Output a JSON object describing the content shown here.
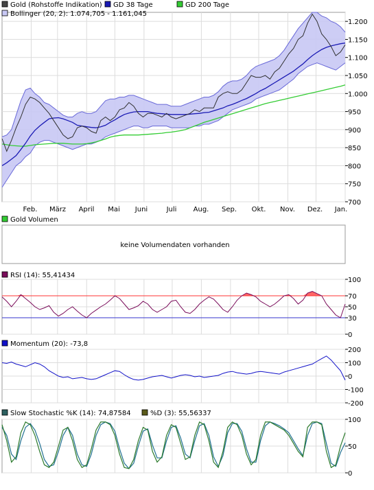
{
  "colors": {
    "price_line": "#303030",
    "bollinger_fill": "#c8c8f4",
    "bollinger_stroke": "#6868d8",
    "ma38": "#1a1ab4",
    "ma200": "#33cc33",
    "rsi_line": "#7a0c5a",
    "rsi_hi_fill": "#ff6666",
    "rsi_lo_fill": "#5a4ae8",
    "rsi_hi_ref": "#ff3333",
    "rsi_lo_ref": "#3333cc",
    "momentum": "#1010c8",
    "stoch_k": "#2c7a2c",
    "stoch_d": "#1f6f90",
    "grid": "#dcdcdc",
    "legend_box_gold": "#444444",
    "legend_box_bollinger": "#c8c8f4",
    "legend_box_volume": "#33cc33",
    "legend_box_rsi": "#7a0c5a",
    "legend_box_momentum": "#1010c8",
    "legend_box_stoch_k": "#2c6060",
    "legend_box_stoch_d": "#5a5a1a"
  },
  "months": [
    "Feb.",
    "März",
    "April",
    "Mai",
    "Juni",
    "Juli",
    "Aug.",
    "Sep.",
    "Okt.",
    "Nov.",
    "Dez.",
    "Jan."
  ],
  "volume_panel": {
    "legend": "Gold Volumen",
    "message": "keine Volumendaten vorhanden"
  },
  "chart_data": [
    {
      "type": "line",
      "legend": [
        {
          "label": "Gold (Rohstoffe Indikation)",
          "color_key": "legend_box_gold"
        },
        {
          "label": "GD 38 Tage",
          "color_key": "ma38"
        },
        {
          "label": "GD 200 Tage",
          "color_key": "ma200"
        },
        {
          "label": "Bollinger (20, 2): 1.074,705 - 1.161,045",
          "color_key": "legend_box_bollinger"
        }
      ],
      "yticks": [
        "700",
        "750",
        "800",
        "850",
        "900",
        "950",
        "1.000",
        "1.050",
        "1.100",
        "1.150",
        "1.200"
      ],
      "ylim": [
        700,
        1225
      ],
      "x_days": [
        0,
        5,
        10,
        15,
        20,
        25,
        30,
        35,
        40,
        45,
        50,
        55,
        60,
        65,
        70,
        75,
        80,
        85,
        90,
        95,
        100,
        105,
        110,
        115,
        120,
        125,
        130,
        135,
        140,
        145,
        150,
        155,
        160,
        165,
        170,
        175,
        180,
        185,
        190,
        195,
        200,
        205,
        210,
        215,
        220,
        225,
        230,
        235,
        240,
        245,
        250,
        255,
        260,
        265,
        270,
        275,
        280,
        285,
        290,
        295,
        300,
        305,
        310,
        315,
        320,
        325,
        330,
        335,
        340,
        345,
        350,
        355,
        360,
        365
      ],
      "series": [
        {
          "name": "Gold (Rohstoffe Indikation)",
          "values": [
            875,
            840,
            870,
            905,
            935,
            970,
            990,
            985,
            975,
            960,
            945,
            925,
            905,
            885,
            875,
            880,
            905,
            910,
            905,
            895,
            890,
            925,
            935,
            925,
            935,
            955,
            960,
            975,
            965,
            945,
            935,
            945,
            945,
            940,
            935,
            945,
            935,
            930,
            935,
            940,
            945,
            955,
            950,
            960,
            960,
            960,
            990,
            1000,
            1005,
            1000,
            1000,
            1010,
            1030,
            1050,
            1045,
            1045,
            1050,
            1040,
            1060,
            1070,
            1090,
            1110,
            1125,
            1150,
            1160,
            1195,
            1220,
            1200,
            1165,
            1150,
            1130,
            1105,
            1115,
            1135
          ]
        },
        {
          "name": "GD 38 Tage",
          "values": [
            800,
            808,
            818,
            828,
            845,
            862,
            882,
            898,
            910,
            920,
            930,
            932,
            933,
            930,
            925,
            920,
            912,
            910,
            908,
            906,
            905,
            908,
            912,
            920,
            927,
            935,
            942,
            946,
            949,
            950,
            950,
            950,
            947,
            945,
            944,
            943,
            942,
            942,
            942,
            942,
            943,
            944,
            945,
            947,
            948,
            952,
            956,
            960,
            966,
            970,
            975,
            981,
            986,
            993,
            1000,
            1008,
            1014,
            1022,
            1030,
            1038,
            1046,
            1054,
            1062,
            1072,
            1082,
            1094,
            1105,
            1114,
            1122,
            1128,
            1132,
            1135,
            1138,
            1140
          ]
        },
        {
          "name": "GD 200 Tage",
          "values": [
            860,
            858,
            856,
            855,
            854,
            854,
            856,
            858,
            859,
            860,
            861,
            862,
            862,
            862,
            861,
            860,
            860,
            860,
            861,
            863,
            866,
            870,
            874,
            879,
            882,
            884,
            885,
            885,
            885,
            885,
            886,
            887,
            888,
            889,
            890,
            892,
            893,
            895,
            897,
            900,
            905,
            910,
            915,
            920,
            924,
            928,
            932,
            936,
            940,
            944,
            948,
            952,
            956,
            960,
            964,
            968,
            972,
            975,
            978,
            981,
            984,
            987,
            990,
            993,
            996,
            999,
            1002,
            1005,
            1008,
            1011,
            1014,
            1017,
            1020,
            1024
          ]
        },
        {
          "name": "Bollinger oben",
          "values": [
            880,
            885,
            900,
            940,
            980,
            1010,
            1015,
            1000,
            990,
            975,
            970,
            960,
            950,
            940,
            935,
            935,
            945,
            950,
            945,
            945,
            950,
            965,
            980,
            985,
            985,
            990,
            990,
            995,
            995,
            990,
            985,
            980,
            975,
            970,
            970,
            970,
            965,
            965,
            965,
            970,
            975,
            980,
            985,
            990,
            990,
            995,
            1005,
            1020,
            1030,
            1035,
            1035,
            1040,
            1050,
            1065,
            1075,
            1080,
            1085,
            1090,
            1095,
            1105,
            1120,
            1140,
            1160,
            1180,
            1195,
            1210,
            1225,
            1225,
            1215,
            1210,
            1200,
            1195,
            1185,
            1170
          ]
        },
        {
          "name": "Bollinger unten",
          "values": [
            740,
            760,
            780,
            800,
            810,
            825,
            835,
            855,
            865,
            870,
            870,
            865,
            860,
            855,
            850,
            845,
            850,
            855,
            860,
            860,
            865,
            870,
            880,
            885,
            890,
            895,
            900,
            905,
            910,
            910,
            905,
            905,
            910,
            910,
            910,
            910,
            905,
            905,
            905,
            905,
            905,
            910,
            910,
            915,
            915,
            920,
            925,
            935,
            945,
            955,
            960,
            965,
            970,
            975,
            985,
            990,
            995,
            1000,
            1005,
            1010,
            1020,
            1030,
            1040,
            1055,
            1065,
            1075,
            1080,
            1085,
            1080,
            1075,
            1070,
            1065,
            1075,
            1085
          ]
        }
      ]
    },
    {
      "type": "line",
      "legend": [
        {
          "label": "RSI (14): 55,41434",
          "color_key": "legend_box_rsi"
        }
      ],
      "yticks": [
        "0",
        "30",
        "50",
        "70",
        "100"
      ],
      "ylim": [
        0,
        100
      ],
      "reference_lines": [
        70,
        30
      ],
      "x_days": [
        0,
        5,
        10,
        15,
        20,
        25,
        30,
        35,
        40,
        45,
        50,
        55,
        60,
        65,
        70,
        75,
        80,
        85,
        90,
        95,
        100,
        105,
        110,
        115,
        120,
        125,
        130,
        135,
        140,
        145,
        150,
        155,
        160,
        165,
        170,
        175,
        180,
        185,
        190,
        195,
        200,
        205,
        210,
        215,
        220,
        225,
        230,
        235,
        240,
        245,
        250,
        255,
        260,
        265,
        270,
        275,
        280,
        285,
        290,
        295,
        300,
        305,
        310,
        315,
        320,
        325,
        330,
        335,
        340,
        345,
        350,
        355,
        360,
        365
      ],
      "series": [
        {
          "name": "RSI (14)",
          "values": [
            68,
            60,
            50,
            60,
            72,
            65,
            58,
            50,
            45,
            48,
            52,
            40,
            33,
            38,
            45,
            50,
            42,
            35,
            30,
            38,
            44,
            50,
            55,
            62,
            70,
            65,
            55,
            45,
            48,
            52,
            60,
            55,
            45,
            40,
            45,
            50,
            60,
            62,
            50,
            40,
            38,
            45,
            55,
            62,
            68,
            64,
            55,
            45,
            40,
            50,
            62,
            70,
            75,
            72,
            68,
            60,
            55,
            50,
            55,
            62,
            70,
            72,
            65,
            55,
            62,
            75,
            78,
            74,
            70,
            55,
            45,
            35,
            30,
            55
          ]
        }
      ]
    },
    {
      "type": "line",
      "legend": [
        {
          "label": "Momentum (20): -73,8",
          "color_key": "legend_box_momentum"
        }
      ],
      "yticks": [
        "-200",
        "-100",
        "0",
        "100",
        "200"
      ],
      "ylim": [
        -200,
        200
      ],
      "x_days": [
        0,
        5,
        10,
        15,
        20,
        25,
        30,
        35,
        40,
        45,
        50,
        55,
        60,
        65,
        70,
        75,
        80,
        85,
        90,
        95,
        100,
        105,
        110,
        115,
        120,
        125,
        130,
        135,
        140,
        145,
        150,
        155,
        160,
        165,
        170,
        175,
        180,
        185,
        190,
        195,
        200,
        205,
        210,
        215,
        220,
        225,
        230,
        235,
        240,
        245,
        250,
        255,
        260,
        265,
        270,
        275,
        280,
        285,
        290,
        295,
        300,
        305,
        310,
        315,
        320,
        325,
        330,
        335,
        340,
        345,
        350,
        355,
        360,
        365
      ],
      "series": [
        {
          "name": "Momentum (20)",
          "values": [
            100,
            95,
            105,
            90,
            80,
            70,
            85,
            100,
            90,
            70,
            40,
            20,
            0,
            -10,
            -5,
            -20,
            -15,
            -10,
            -20,
            -25,
            -20,
            -5,
            10,
            25,
            40,
            35,
            10,
            -10,
            -25,
            -30,
            -25,
            -15,
            -5,
            0,
            5,
            -5,
            -15,
            -5,
            5,
            10,
            5,
            -5,
            0,
            -10,
            -5,
            0,
            5,
            20,
            30,
            35,
            25,
            20,
            15,
            20,
            30,
            35,
            30,
            25,
            20,
            15,
            30,
            40,
            50,
            60,
            70,
            80,
            90,
            110,
            130,
            150,
            120,
            80,
            40,
            -30
          ]
        }
      ]
    },
    {
      "type": "line",
      "legend": [
        {
          "label": "Slow Stochastic %K (14): 74,87584",
          "color_key": "legend_box_stoch_k"
        },
        {
          "label": "%D (3): 55,56337",
          "color_key": "legend_box_stoch_d"
        }
      ],
      "yticks": [
        "0",
        "50",
        "100"
      ],
      "ylim": [
        0,
        100
      ],
      "x_days": [
        0,
        5,
        10,
        15,
        20,
        25,
        30,
        35,
        40,
        45,
        50,
        55,
        60,
        65,
        70,
        75,
        80,
        85,
        90,
        95,
        100,
        105,
        110,
        115,
        120,
        125,
        130,
        135,
        140,
        145,
        150,
        155,
        160,
        165,
        170,
        175,
        180,
        185,
        190,
        195,
        200,
        205,
        210,
        215,
        220,
        225,
        230,
        235,
        240,
        245,
        250,
        255,
        260,
        265,
        270,
        275,
        280,
        285,
        290,
        295,
        300,
        305,
        310,
        315,
        320,
        325,
        330,
        335,
        340,
        345,
        350,
        355,
        360,
        365
      ],
      "series": [
        {
          "name": "Slow Stochastic %K (14)",
          "values": [
            90,
            60,
            20,
            30,
            75,
            95,
            90,
            70,
            40,
            15,
            10,
            20,
            50,
            80,
            85,
            60,
            25,
            10,
            15,
            45,
            80,
            95,
            95,
            90,
            70,
            35,
            10,
            8,
            25,
            60,
            85,
            80,
            40,
            20,
            30,
            70,
            90,
            85,
            55,
            25,
            30,
            70,
            95,
            90,
            60,
            20,
            10,
            40,
            85,
            95,
            90,
            70,
            35,
            15,
            25,
            70,
            95,
            95,
            90,
            85,
            80,
            70,
            55,
            40,
            30,
            85,
            95,
            95,
            90,
            40,
            10,
            15,
            50,
            75
          ]
        },
        {
          "name": "%D (3)",
          "values": [
            85,
            70,
            35,
            25,
            60,
            85,
            92,
            80,
            55,
            25,
            12,
            15,
            40,
            70,
            85,
            70,
            35,
            15,
            12,
            35,
            70,
            90,
            95,
            92,
            78,
            45,
            18,
            8,
            18,
            50,
            78,
            82,
            52,
            28,
            28,
            60,
            85,
            88,
            65,
            35,
            28,
            60,
            88,
            92,
            70,
            30,
            12,
            32,
            75,
            92,
            92,
            78,
            45,
            20,
            20,
            60,
            88,
            95,
            92,
            88,
            82,
            75,
            60,
            45,
            32,
            70,
            92,
            95,
            92,
            55,
            18,
            12,
            38,
            56
          ]
        }
      ]
    }
  ]
}
